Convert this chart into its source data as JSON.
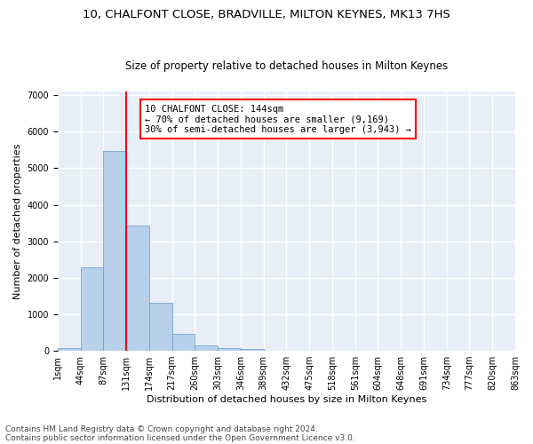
{
  "title1": "10, CHALFONT CLOSE, BRADVILLE, MILTON KEYNES, MK13 7HS",
  "title2": "Size of property relative to detached houses in Milton Keynes",
  "xlabel": "Distribution of detached houses by size in Milton Keynes",
  "ylabel": "Number of detached properties",
  "footer1": "Contains HM Land Registry data © Crown copyright and database right 2024.",
  "footer2": "Contains public sector information licensed under the Open Government Licence v3.0.",
  "annotation_line1": "10 CHALFONT CLOSE: 144sqm",
  "annotation_line2": "← 70% of detached houses are smaller (9,169)",
  "annotation_line3": "30% of semi-detached houses are larger (3,943) →",
  "bar_values": [
    75,
    2280,
    5470,
    3430,
    1310,
    460,
    160,
    80,
    40,
    0,
    0,
    0,
    0,
    0,
    0,
    0,
    0,
    0,
    0,
    0
  ],
  "bar_color": "#b8d0ea",
  "bar_edgecolor": "#6699cc",
  "categories": [
    "1sqm",
    "44sqm",
    "87sqm",
    "131sqm",
    "174sqm",
    "217sqm",
    "260sqm",
    "303sqm",
    "346sqm",
    "389sqm",
    "432sqm",
    "475sqm",
    "518sqm",
    "561sqm",
    "604sqm",
    "648sqm",
    "691sqm",
    "734sqm",
    "777sqm",
    "820sqm",
    "863sqm"
  ],
  "ylim": [
    0,
    7100
  ],
  "yticks": [
    0,
    1000,
    2000,
    3000,
    4000,
    5000,
    6000,
    7000
  ],
  "background_color": "#e8eef8",
  "grid_color": "#ffffff",
  "title1_fontsize": 9.5,
  "title2_fontsize": 8.5,
  "axis_label_fontsize": 8,
  "tick_fontsize": 7,
  "footer_fontsize": 6.5,
  "annotation_fontsize": 7.5
}
